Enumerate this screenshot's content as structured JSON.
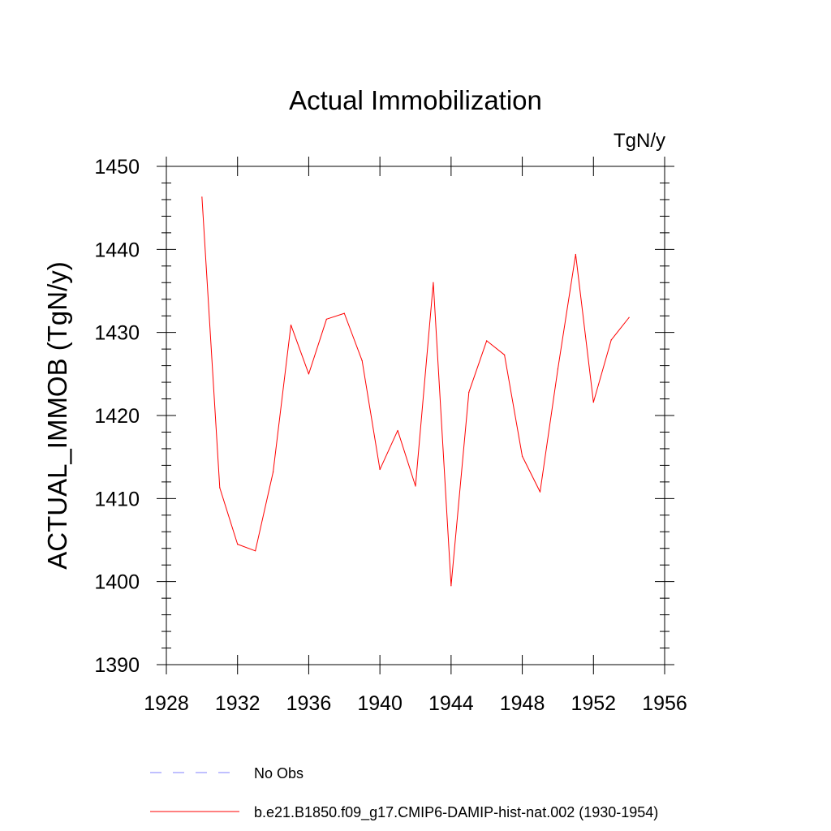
{
  "chart_data": {
    "type": "line",
    "title": "Actual Immobilization",
    "units": "TgN/y",
    "xlabel": "",
    "ylabel": "ACTUAL_IMMOB  (TgN/y)",
    "xlim": [
      1928,
      1956
    ],
    "ylim": [
      1390,
      1450
    ],
    "x_ticks": [
      "1928",
      "1932",
      "1936",
      "1940",
      "1944",
      "1948",
      "1952",
      "1956"
    ],
    "y_ticks": [
      "1390",
      "1400",
      "1410",
      "1420",
      "1430",
      "1440",
      "1450"
    ],
    "grid": false,
    "legend_position": "bottom",
    "series": [
      {
        "name": "b.e21.B1850.f09_g17.CMIP6-DAMIP-hist-nat.002 (1930-1954)",
        "color": "#ff0000",
        "style": "solid",
        "x": [
          1930,
          1931,
          1932,
          1933,
          1934,
          1935,
          1936,
          1937,
          1938,
          1939,
          1940,
          1941,
          1942,
          1943,
          1944,
          1945,
          1946,
          1947,
          1948,
          1949,
          1950,
          1951,
          1952,
          1953,
          1954
        ],
        "y": [
          1446.3,
          1411.3,
          1404.5,
          1403.7,
          1413.2,
          1430.9,
          1425.0,
          1431.6,
          1432.3,
          1426.6,
          1413.5,
          1418.2,
          1411.5,
          1436.0,
          1399.5,
          1422.8,
          1429.0,
          1427.3,
          1415.1,
          1410.8,
          1425.6,
          1439.4,
          1421.6,
          1429.1,
          1431.8
        ]
      }
    ],
    "legend": [
      {
        "label": "No Obs",
        "color": "#8080ff",
        "style": "dashed"
      },
      {
        "label": "b.e21.B1850.f09_g17.CMIP6-DAMIP-hist-nat.002 (1930-1954)",
        "color": "#ff0000",
        "style": "solid"
      }
    ]
  }
}
